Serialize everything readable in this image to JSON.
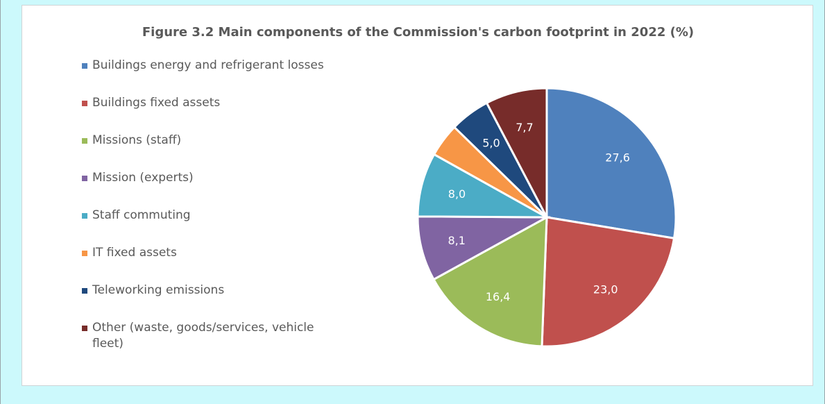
{
  "chart_data": {
    "type": "pie",
    "title": "Figure 3.2 Main components of the Commission's carbon footprint in 2022 (%)",
    "legend_position": "left",
    "slices": [
      {
        "name": "Buildings energy and refrigerant losses",
        "value": 27.6,
        "label": "27,6",
        "color": "#4f81bd"
      },
      {
        "name": "Buildings fixed assets",
        "value": 23.0,
        "label": "23,0",
        "color": "#c0504d"
      },
      {
        "name": "Missions (staff)",
        "value": 16.4,
        "label": "16,4",
        "color": "#9bbb59"
      },
      {
        "name": "Mission (experts)",
        "value": 8.1,
        "label": "8,1",
        "color": "#8064a2"
      },
      {
        "name": "Staff commuting",
        "value": 8.0,
        "label": "8,0",
        "color": "#4bacc6"
      },
      {
        "name": "IT fixed assets",
        "value": 4.2,
        "label": "",
        "color": "#f79646"
      },
      {
        "name": "Teleworking emissions",
        "value": 5.0,
        "label": "5,0",
        "color": "#1f497d"
      },
      {
        "name": "Other (waste, goods/services, vehicle fleet)",
        "value": 7.7,
        "label": "7,7",
        "color": "#772c2a"
      }
    ]
  }
}
